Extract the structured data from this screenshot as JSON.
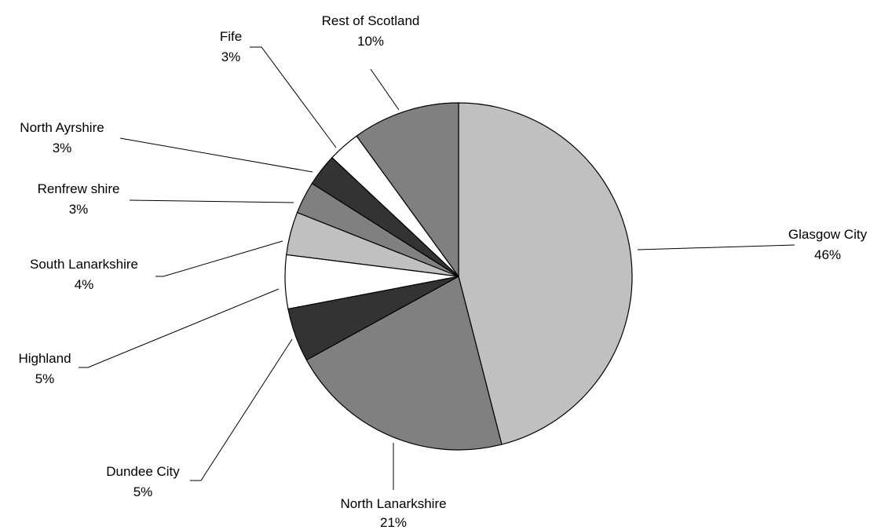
{
  "chart_data": {
    "type": "pie",
    "start_angle_deg": 0,
    "direction": "clockwise",
    "slices": [
      {
        "label": "Glasgow City",
        "value": 46,
        "percent_label": "46%",
        "color": "#c0c0c0"
      },
      {
        "label": "North Lanarkshire",
        "value": 21,
        "percent_label": "21%",
        "color": "#808080"
      },
      {
        "label": "Dundee City",
        "value": 5,
        "percent_label": "5%",
        "color": "#333333"
      },
      {
        "label": "Highland",
        "value": 5,
        "percent_label": "5%",
        "color": "#ffffff"
      },
      {
        "label": "South Lanarkshire",
        "value": 4,
        "percent_label": "4%",
        "color": "#c0c0c0"
      },
      {
        "label": "Renfrew shire",
        "value": 3,
        "percent_label": "3%",
        "color": "#808080"
      },
      {
        "label": "North Ayrshire",
        "value": 3,
        "percent_label": "3%",
        "color": "#333333"
      },
      {
        "label": "Fife",
        "value": 3,
        "percent_label": "3%",
        "color": "#ffffff"
      },
      {
        "label": "Rest of Scotland",
        "value": 10,
        "percent_label": "10%",
        "color": "#808080"
      }
    ],
    "legend": "none"
  }
}
